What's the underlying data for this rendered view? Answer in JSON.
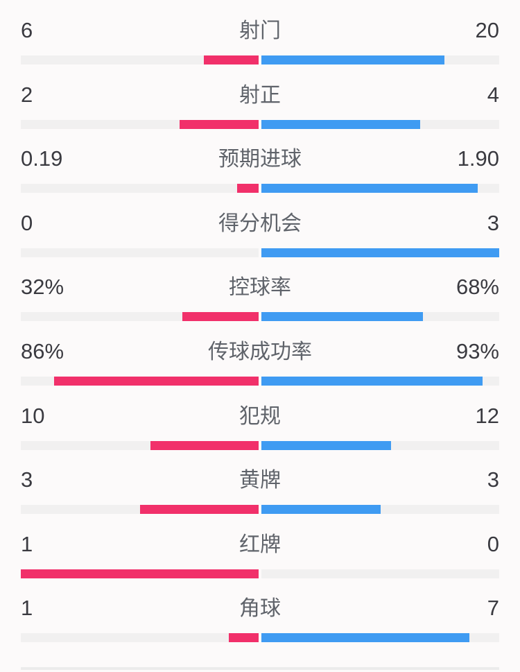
{
  "colors": {
    "background": "#fcfafa",
    "home": "#f1306a",
    "away": "#3f9bf2",
    "track": "#f1f0f0",
    "value_text": "#3a3a40",
    "label_text": "#5f636a",
    "divider": "#ececec"
  },
  "chart_data": {
    "type": "bar",
    "subtype": "paired_horizontal_team_comparison",
    "title": "",
    "legend_position": "none",
    "grid": false,
    "bar_scale": "percent rows: value/100 of half-width; count rows: value/(left+right) of half-width",
    "categories": [
      "射门",
      "射正",
      "预期进球",
      "得分机会",
      "控球率",
      "传球成功率",
      "犯规",
      "黄牌",
      "红牌",
      "角球"
    ],
    "series": [
      {
        "name": "home",
        "color": "#f1306a",
        "values": [
          "6",
          "2",
          "0.19",
          "0",
          "32%",
          "86%",
          "10",
          "3",
          "1",
          "1"
        ]
      },
      {
        "name": "away",
        "color": "#3f9bf2",
        "values": [
          "20",
          "4",
          "1.90",
          "3",
          "68%",
          "93%",
          "12",
          "3",
          "0",
          "7"
        ]
      }
    ],
    "rows": [
      {
        "label": "射门",
        "left": "6",
        "right": "20"
      },
      {
        "label": "射正",
        "left": "2",
        "right": "4"
      },
      {
        "label": "预期进球",
        "left": "0.19",
        "right": "1.90"
      },
      {
        "label": "得分机会",
        "left": "0",
        "right": "3"
      },
      {
        "label": "控球率",
        "left": "32%",
        "right": "68%"
      },
      {
        "label": "传球成功率",
        "left": "86%",
        "right": "93%"
      },
      {
        "label": "犯规",
        "left": "10",
        "right": "12"
      },
      {
        "label": "黄牌",
        "left": "3",
        "right": "3"
      },
      {
        "label": "红牌",
        "left": "1",
        "right": "0"
      },
      {
        "label": "角球",
        "left": "1",
        "right": "7"
      }
    ]
  }
}
